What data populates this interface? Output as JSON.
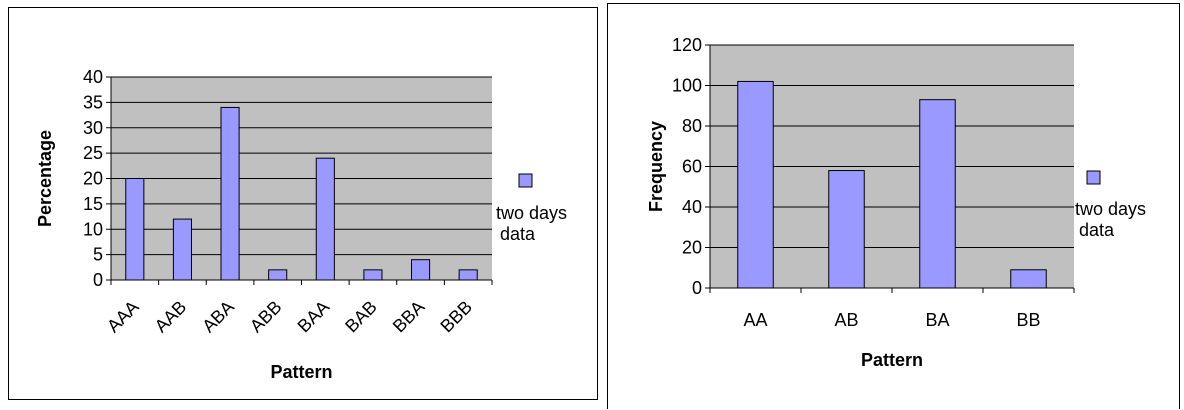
{
  "chart_data": [
    {
      "type": "bar",
      "categories": [
        "AAA",
        "AAB",
        "ABA",
        "ABB",
        "BAA",
        "BAB",
        "BBA",
        "BBB"
      ],
      "series": [
        {
          "name": "two days data",
          "values": [
            20,
            12,
            34,
            2,
            24,
            2,
            4,
            2
          ]
        }
      ],
      "xlabel": "Pattern",
      "ylabel": "Percentage",
      "ylim": [
        0,
        40
      ],
      "yticks": [
        "0",
        "5",
        "10",
        "15",
        "20",
        "25",
        "30",
        "35",
        "40"
      ],
      "grid": true,
      "legend": {
        "position": "right",
        "lines": [
          "two days",
          "data"
        ]
      },
      "colors": {
        "bar": "#9999ff",
        "plot_bg": "#c0c0c0"
      }
    },
    {
      "type": "bar",
      "categories": [
        "AA",
        "AB",
        "BA",
        "BB"
      ],
      "series": [
        {
          "name": "two days data",
          "values": [
            102,
            58,
            93,
            9
          ]
        }
      ],
      "xlabel": "Pattern",
      "ylabel": "Frequency",
      "ylim": [
        0,
        120
      ],
      "yticks": [
        "0",
        "20",
        "40",
        "60",
        "80",
        "100",
        "120"
      ],
      "grid": true,
      "legend": {
        "position": "right",
        "lines": [
          "two days",
          "data"
        ]
      },
      "colors": {
        "bar": "#9999ff",
        "plot_bg": "#c0c0c0"
      }
    }
  ]
}
